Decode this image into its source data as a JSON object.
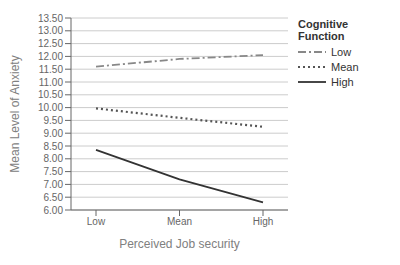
{
  "chart_data": {
    "type": "line",
    "xlabel": "Perceived Job security",
    "ylabel": "Mean Level of Anxiety",
    "legend_title": "Cognitive\nFunction",
    "categories": [
      "Low",
      "Mean",
      "High"
    ],
    "series": [
      {
        "name": "Low",
        "color": "#888888",
        "line_style": "dashdot",
        "values": [
          11.6,
          11.9,
          12.05
        ]
      },
      {
        "name": "Mean",
        "color": "#555555",
        "line_style": "dotted",
        "values": [
          9.97,
          9.6,
          9.25
        ]
      },
      {
        "name": "High",
        "color": "#333333",
        "line_style": "solid",
        "values": [
          8.35,
          7.2,
          6.3
        ]
      }
    ],
    "ylim": [
      6.0,
      13.5
    ],
    "yticks": [
      {
        "value": 6.0,
        "label": "6.00"
      },
      {
        "value": 6.5,
        "label": "6.50"
      },
      {
        "value": 7.0,
        "label": "7.00"
      },
      {
        "value": 7.5,
        "label": "7.50"
      },
      {
        "value": 8.0,
        "label": "8.00"
      },
      {
        "value": 8.5,
        "label": "8.50"
      },
      {
        "value": 9.0,
        "label": "9.00"
      },
      {
        "value": 9.5,
        "label": "9.50"
      },
      {
        "value": 10.0,
        "label": "10.00"
      },
      {
        "value": 10.5,
        "label": "10.50"
      },
      {
        "value": 11.0,
        "label": "11.00"
      },
      {
        "value": 11.5,
        "label": "11.50"
      },
      {
        "value": 12.0,
        "label": "12.00"
      },
      {
        "value": 12.5,
        "label": "12.50"
      },
      {
        "value": 13.0,
        "label": "13.00"
      },
      {
        "value": 13.5,
        "label": "13.50"
      }
    ],
    "grid": true,
    "legend": "upper right"
  }
}
